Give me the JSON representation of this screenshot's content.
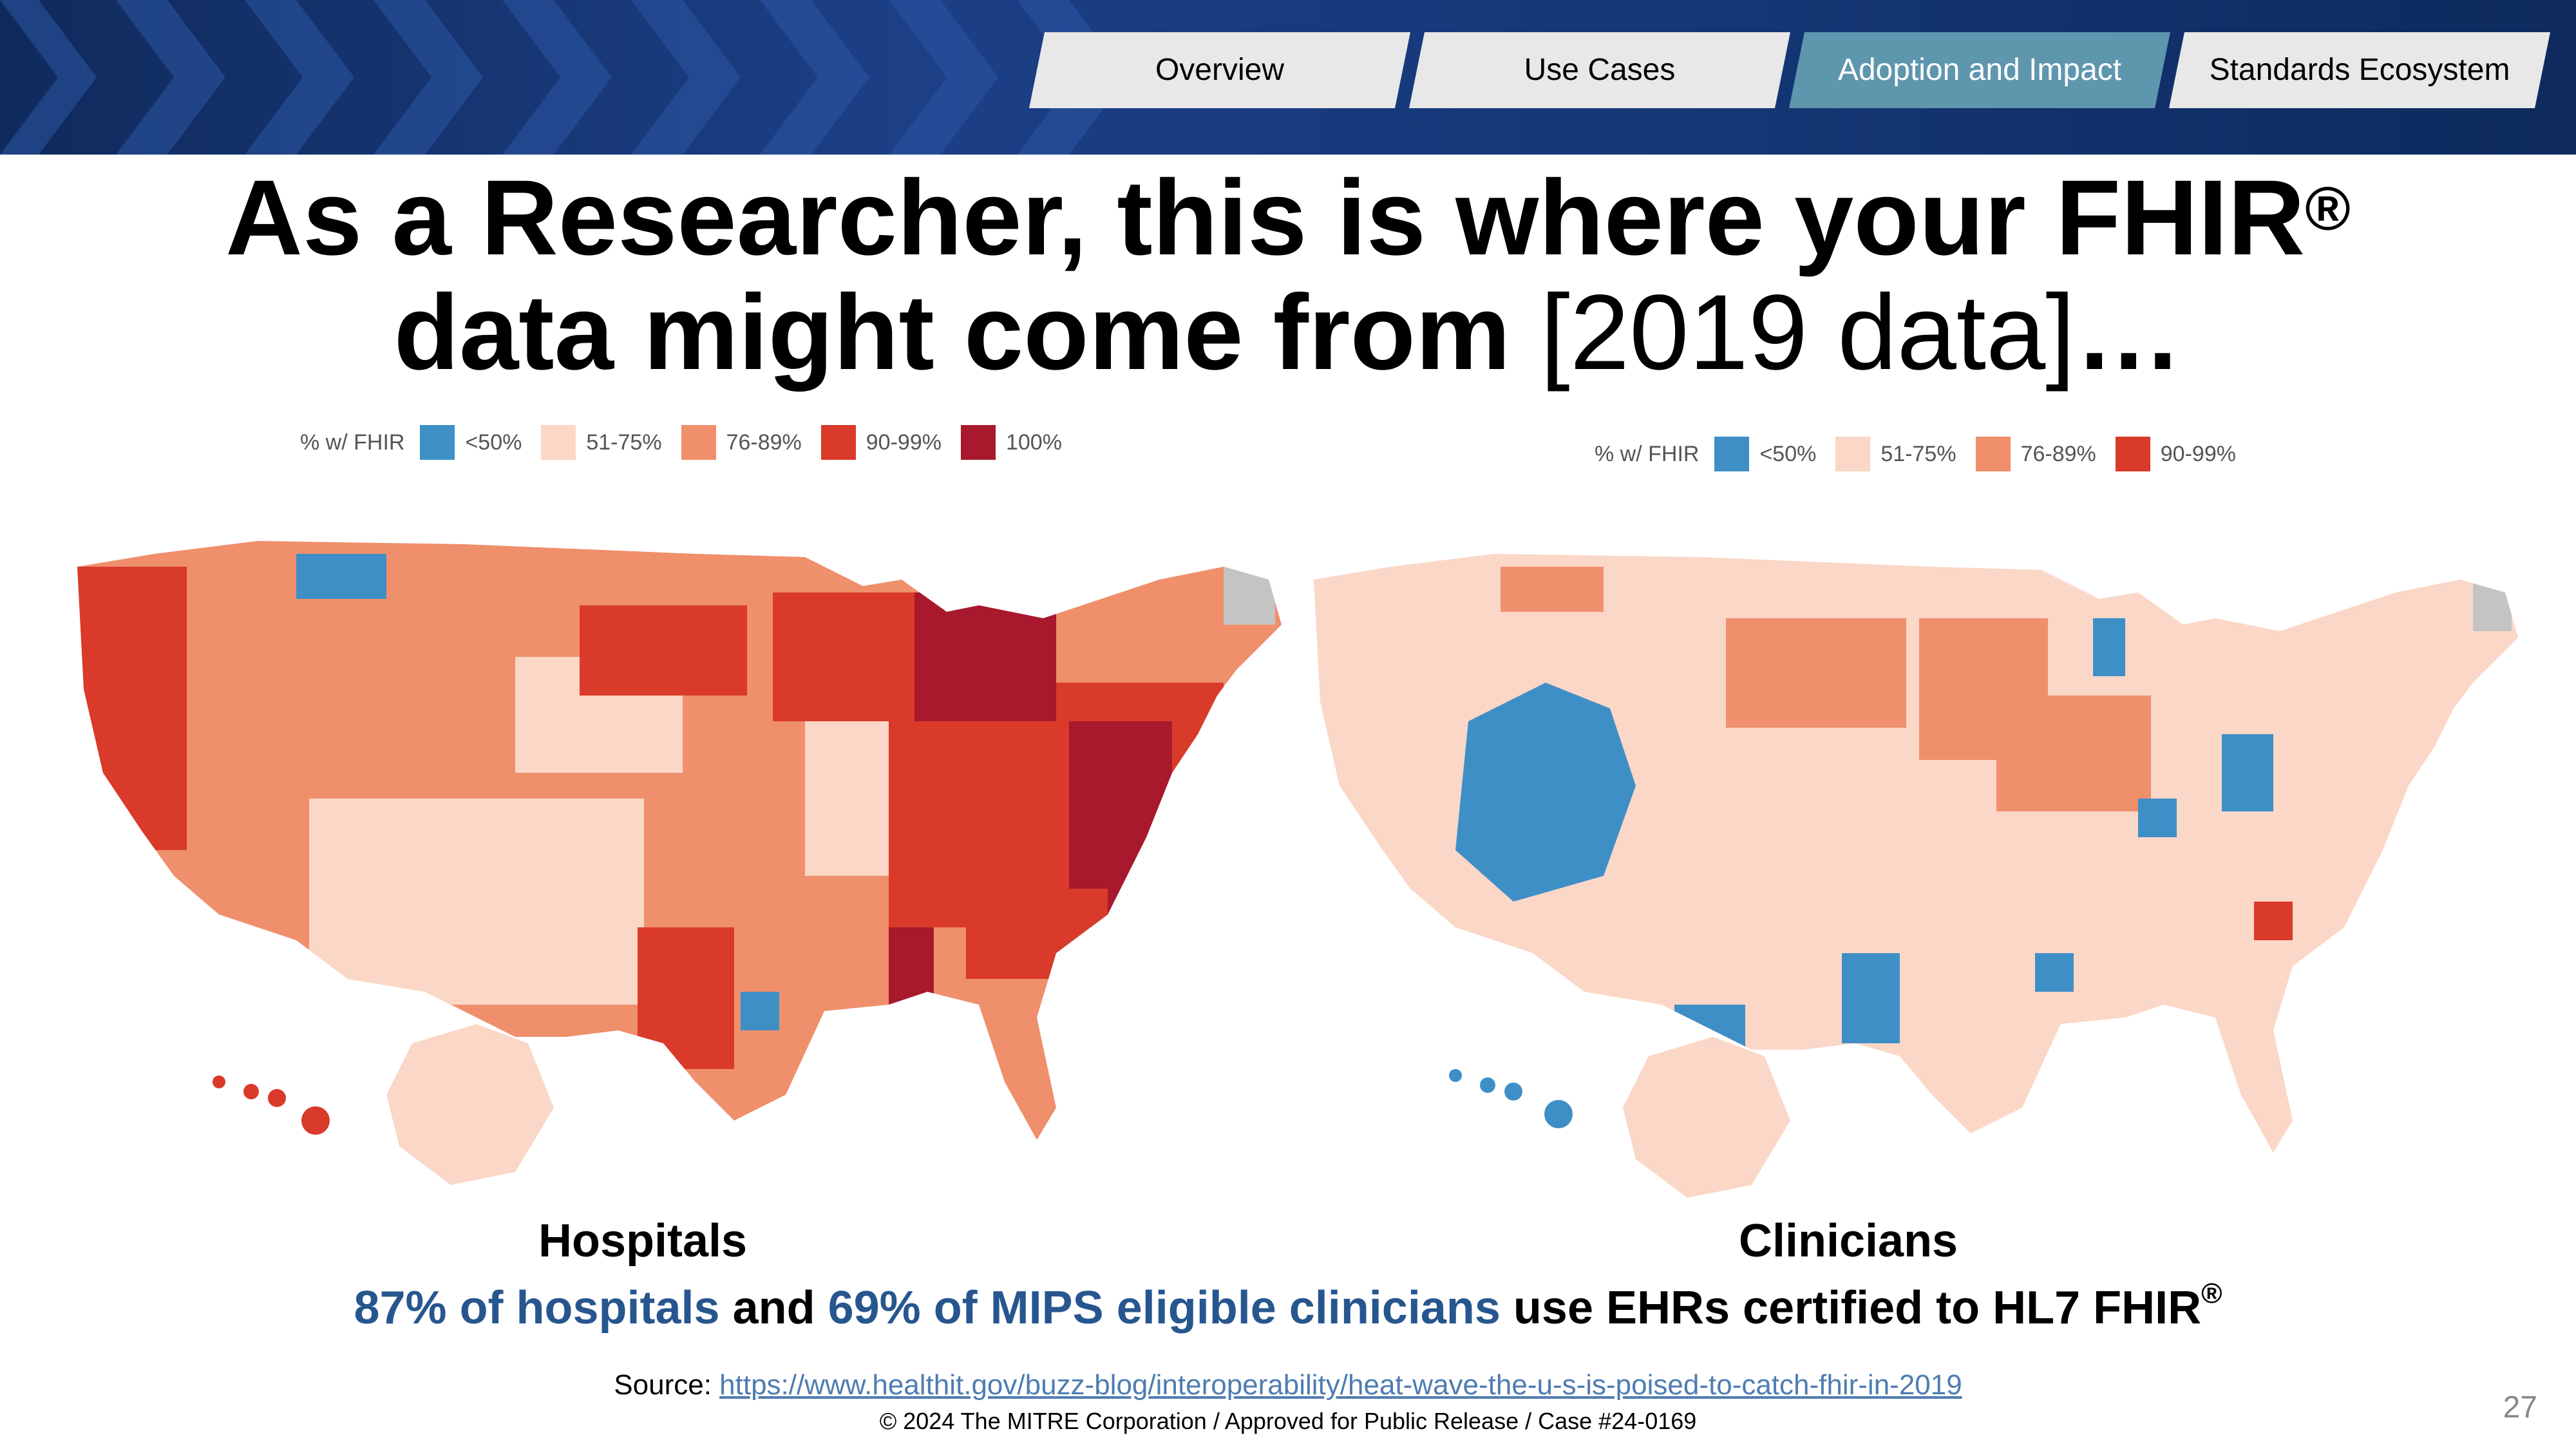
{
  "nav": {
    "tabs": [
      {
        "label": "Overview",
        "active": false
      },
      {
        "label": "Use Cases",
        "active": false
      },
      {
        "label": "Adoption and Impact",
        "active": true
      },
      {
        "label": "Standards Ecosystem",
        "active": false
      }
    ]
  },
  "title": {
    "line1": "As a Researcher, this is where your FHIR",
    "line1_sup": "®",
    "line2_bold": "data might come from ",
    "line2_light": "[2019 data]",
    "line2_end": "…"
  },
  "legend_title": "% w/ FHIR",
  "hospitals_legend": [
    {
      "label": "<50%",
      "color": "#3f8fc7"
    },
    {
      "label": "51-75%",
      "color": "#fbd7c7"
    },
    {
      "label": "76-89%",
      "color": "#ef8f6b"
    },
    {
      "label": "90-99%",
      "color": "#d93a2a"
    },
    {
      "label": "100%",
      "color": "#a8192e"
    }
  ],
  "clinicians_legend": [
    {
      "label": "<50%",
      "color": "#3f8fc7"
    },
    {
      "label": "51-75%",
      "color": "#fbd7c7"
    },
    {
      "label": "76-89%",
      "color": "#ef8f6b"
    },
    {
      "label": "90-99%",
      "color": "#d93a2a"
    }
  ],
  "colors": {
    "no_data": "#c4c4c4",
    "accent_blue": "#27568f",
    "active_tab": "#5e96ad"
  },
  "maps": {
    "hospitals_label": "Hospitals",
    "clinicians_label": "Clinicians"
  },
  "summary": {
    "part1": "87% of hospitals",
    "part2": " and ",
    "part3": "69% of MIPS eligible clinicians",
    "part4": " use EHRs certified to HL7 FHIR",
    "sup": "®"
  },
  "source": {
    "label": "Source: ",
    "url": "https://www.healthit.gov/buzz-blog/interoperability/heat-wave-the-u-s-is-poised-to-catch-fhir-in-2019"
  },
  "copyright": "© 2024 The MITRE Corporation / Approved for Public Release / Case #24-0169",
  "page_number": "27"
}
